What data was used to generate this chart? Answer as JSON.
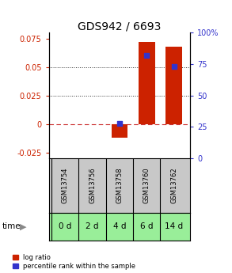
{
  "title": "GDS942 / 6693",
  "samples": [
    "GSM13754",
    "GSM13756",
    "GSM13758",
    "GSM13760",
    "GSM13762"
  ],
  "time_labels": [
    "0 d",
    "2 d",
    "4 d",
    "6 d",
    "14 d"
  ],
  "log_ratios": [
    0.0,
    0.0,
    -0.012,
    0.072,
    0.068
  ],
  "percentile_ranks": [
    null,
    null,
    28,
    82,
    73
  ],
  "ylim_left": [
    -0.03,
    0.08
  ],
  "ylim_right": [
    0,
    100
  ],
  "yticks_left": [
    -0.025,
    0.0,
    0.025,
    0.05,
    0.075
  ],
  "yticks_right": [
    0,
    25,
    50,
    75,
    100
  ],
  "ytick_labels_left": [
    "-0.025",
    "0",
    "0.025",
    "0.05",
    "0.075"
  ],
  "ytick_labels_right": [
    "0",
    "25",
    "50",
    "75",
    "100%"
  ],
  "bar_color": "#cc2200",
  "dot_color": "#3333cc",
  "zero_line_color": "#cc3333",
  "dotted_line_color": "#333333",
  "bg_color": "#ffffff",
  "sample_bg_color": "#c8c8c8",
  "time_bg_color": "#99ee99",
  "bar_width": 0.6,
  "legend_log_ratio": "log ratio",
  "legend_percentile": "percentile rank within the sample",
  "title_fontsize": 10,
  "tick_fontsize": 7,
  "label_fontsize": 7.5
}
